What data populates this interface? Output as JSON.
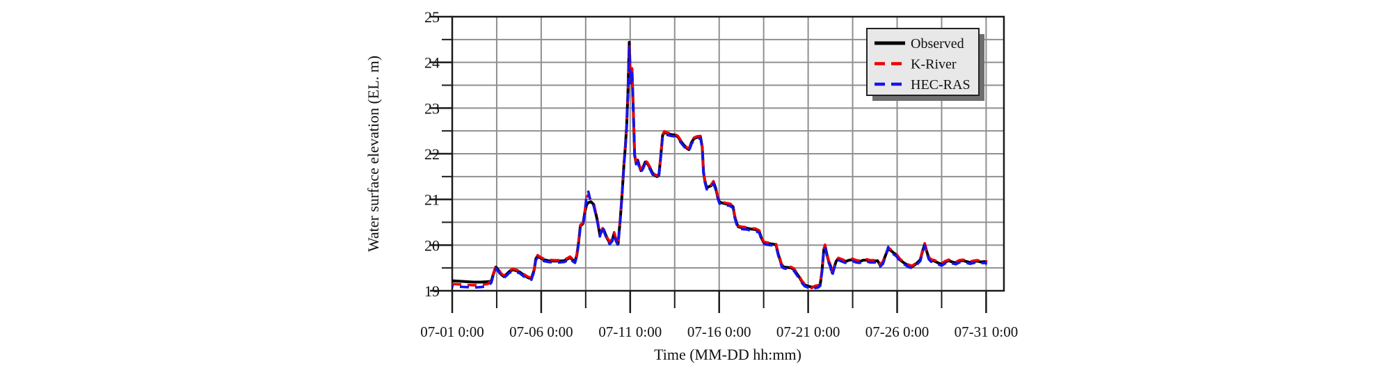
{
  "chart_data": {
    "type": "line",
    "title": "",
    "xlabel": "Time (MM-DD hh:mm)",
    "ylabel": "Water surface elevation (EL. m)",
    "x_unit": "day of July, hours as fraction",
    "xlim_days": [
      1,
      32
    ],
    "ylim": [
      19,
      25
    ],
    "grid_on": true,
    "x_major_ticks": [
      {
        "day": 1,
        "label": "07-01 0:00"
      },
      {
        "day": 6,
        "label": "07-06 0:00"
      },
      {
        "day": 11,
        "label": "07-11 0:00"
      },
      {
        "day": 16,
        "label": "07-16 0:00"
      },
      {
        "day": 21,
        "label": "07-21 0:00"
      },
      {
        "day": 26,
        "label": "07-26 0:00"
      },
      {
        "day": 31,
        "label": "07-31 0:00"
      }
    ],
    "x_minor_tick_days": [
      3.5,
      8.5,
      13.5,
      18.5,
      23.5,
      28.5
    ],
    "y_major_ticks": [
      {
        "value": 25,
        "label": "25"
      },
      {
        "value": 24,
        "label": "24"
      },
      {
        "value": 23,
        "label": "23"
      },
      {
        "value": 22,
        "label": "22"
      },
      {
        "value": 21,
        "label": "21"
      },
      {
        "value": 20,
        "label": "20"
      },
      {
        "value": 19,
        "label": "19"
      }
    ],
    "y_minor_tick_values": [
      19.5,
      20.5,
      21.5,
      22.5,
      23.5,
      24.5
    ],
    "grid": {
      "vertical_days": [
        3.5,
        6,
        8.5,
        11,
        13.5,
        16,
        18.5,
        21,
        23.5,
        26,
        28.5,
        31
      ],
      "horizontal_values": [
        19.5,
        20,
        20.5,
        21,
        21.5,
        22,
        22.5,
        23,
        23.5,
        24,
        24.5
      ]
    },
    "colors": {
      "frame": "#1a1a1a",
      "gridline": "#8f8f8f",
      "observed": "#000000",
      "k_river": "#f00000",
      "hec_ras": "#1414f0"
    },
    "legend": {
      "position": "top-right",
      "bg": "#e8e8e8",
      "border": "#222222",
      "shadow": "#6e6e6e"
    },
    "series": [
      {
        "name": "Observed",
        "color": "#000000",
        "line_style": "solid",
        "points": [
          [
            1.0,
            19.22
          ],
          [
            1.4,
            19.21
          ],
          [
            1.8,
            19.2
          ],
          [
            2.2,
            19.19
          ],
          [
            2.6,
            19.19
          ],
          [
            3.0,
            19.2
          ],
          [
            3.2,
            19.21
          ],
          [
            3.3,
            19.35
          ],
          [
            3.45,
            19.52
          ],
          [
            3.6,
            19.45
          ],
          [
            3.75,
            19.36
          ],
          [
            3.9,
            19.31
          ],
          [
            4.05,
            19.36
          ],
          [
            4.2,
            19.42
          ],
          [
            4.4,
            19.46
          ],
          [
            4.6,
            19.44
          ],
          [
            4.8,
            19.41
          ],
          [
            5.0,
            19.35
          ],
          [
            5.15,
            19.31
          ],
          [
            5.3,
            19.28
          ],
          [
            5.45,
            19.27
          ],
          [
            5.6,
            19.45
          ],
          [
            5.7,
            19.7
          ],
          [
            5.8,
            19.76
          ],
          [
            5.95,
            19.72
          ],
          [
            6.15,
            19.68
          ],
          [
            6.4,
            19.66
          ],
          [
            6.7,
            19.65
          ],
          [
            7.0,
            19.65
          ],
          [
            7.3,
            19.66
          ],
          [
            7.5,
            19.7
          ],
          [
            7.62,
            19.73
          ],
          [
            7.75,
            19.68
          ],
          [
            7.9,
            19.64
          ],
          [
            8.0,
            19.78
          ],
          [
            8.1,
            20.05
          ],
          [
            8.2,
            20.42
          ],
          [
            8.35,
            20.47
          ],
          [
            8.45,
            20.72
          ],
          [
            8.55,
            20.88
          ],
          [
            8.65,
            20.93
          ],
          [
            8.8,
            20.95
          ],
          [
            8.95,
            20.89
          ],
          [
            9.05,
            20.72
          ],
          [
            9.15,
            20.55
          ],
          [
            9.3,
            20.22
          ],
          [
            9.45,
            20.35
          ],
          [
            9.55,
            20.3
          ],
          [
            9.7,
            20.15
          ],
          [
            9.85,
            20.05
          ],
          [
            10.0,
            20.12
          ],
          [
            10.1,
            20.26
          ],
          [
            10.2,
            20.12
          ],
          [
            10.32,
            20.02
          ],
          [
            10.45,
            20.6
          ],
          [
            10.55,
            21.15
          ],
          [
            10.65,
            21.78
          ],
          [
            10.72,
            22.1
          ],
          [
            10.8,
            22.6
          ],
          [
            10.88,
            23.4
          ],
          [
            10.95,
            24.44
          ],
          [
            11.0,
            23.8
          ],
          [
            11.04,
            23.55
          ],
          [
            11.1,
            23.85
          ],
          [
            11.18,
            22.9
          ],
          [
            11.25,
            21.98
          ],
          [
            11.33,
            21.8
          ],
          [
            11.42,
            21.86
          ],
          [
            11.5,
            21.75
          ],
          [
            11.6,
            21.63
          ],
          [
            11.72,
            21.7
          ],
          [
            11.85,
            21.82
          ],
          [
            11.95,
            21.8
          ],
          [
            12.1,
            21.7
          ],
          [
            12.25,
            21.58
          ],
          [
            12.4,
            21.52
          ],
          [
            12.52,
            21.5
          ],
          [
            12.62,
            21.55
          ],
          [
            12.72,
            21.95
          ],
          [
            12.82,
            22.4
          ],
          [
            12.92,
            22.47
          ],
          [
            13.1,
            22.44
          ],
          [
            13.3,
            22.42
          ],
          [
            13.5,
            22.41
          ],
          [
            13.68,
            22.37
          ],
          [
            13.85,
            22.27
          ],
          [
            14.0,
            22.2
          ],
          [
            14.15,
            22.13
          ],
          [
            14.3,
            22.09
          ],
          [
            14.45,
            22.25
          ],
          [
            14.58,
            22.33
          ],
          [
            14.75,
            22.36
          ],
          [
            14.95,
            22.37
          ],
          [
            15.05,
            22.15
          ],
          [
            15.12,
            21.6
          ],
          [
            15.2,
            21.4
          ],
          [
            15.3,
            21.25
          ],
          [
            15.42,
            21.28
          ],
          [
            15.55,
            21.3
          ],
          [
            15.68,
            21.38
          ],
          [
            15.8,
            21.25
          ],
          [
            15.92,
            21.05
          ],
          [
            16.02,
            20.94
          ],
          [
            16.2,
            20.92
          ],
          [
            16.4,
            20.9
          ],
          [
            16.6,
            20.89
          ],
          [
            16.78,
            20.84
          ],
          [
            16.88,
            20.62
          ],
          [
            16.98,
            20.48
          ],
          [
            17.08,
            20.4
          ],
          [
            17.3,
            20.38
          ],
          [
            17.55,
            20.37
          ],
          [
            17.8,
            20.35
          ],
          [
            18.05,
            20.34
          ],
          [
            18.25,
            20.3
          ],
          [
            18.38,
            20.15
          ],
          [
            18.5,
            20.06
          ],
          [
            18.65,
            20.04
          ],
          [
            18.85,
            20.03
          ],
          [
            19.05,
            20.02
          ],
          [
            19.2,
            20.0
          ],
          [
            19.32,
            19.8
          ],
          [
            19.42,
            19.68
          ],
          [
            19.52,
            19.55
          ],
          [
            19.65,
            19.52
          ],
          [
            19.85,
            19.51
          ],
          [
            20.05,
            19.5
          ],
          [
            20.2,
            19.47
          ],
          [
            20.35,
            19.38
          ],
          [
            20.5,
            19.3
          ],
          [
            20.65,
            19.2
          ],
          [
            20.8,
            19.13
          ],
          [
            21.0,
            19.1
          ],
          [
            21.2,
            19.08
          ],
          [
            21.4,
            19.09
          ],
          [
            21.55,
            19.1
          ],
          [
            21.68,
            19.14
          ],
          [
            21.78,
            19.45
          ],
          [
            21.88,
            19.9
          ],
          [
            21.95,
            19.99
          ],
          [
            22.05,
            19.8
          ],
          [
            22.15,
            19.65
          ],
          [
            22.25,
            19.55
          ],
          [
            22.35,
            19.4
          ],
          [
            22.45,
            19.5
          ],
          [
            22.58,
            19.65
          ],
          [
            22.7,
            19.7
          ],
          [
            22.9,
            19.67
          ],
          [
            23.1,
            19.64
          ],
          [
            23.3,
            19.67
          ],
          [
            23.5,
            19.68
          ],
          [
            23.7,
            19.65
          ],
          [
            23.9,
            19.64
          ],
          [
            24.1,
            19.67
          ],
          [
            24.3,
            19.67
          ],
          [
            24.5,
            19.65
          ],
          [
            24.7,
            19.65
          ],
          [
            24.9,
            19.66
          ],
          [
            25.05,
            19.56
          ],
          [
            25.2,
            19.62
          ],
          [
            25.35,
            19.78
          ],
          [
            25.5,
            19.92
          ],
          [
            25.65,
            19.88
          ],
          [
            25.8,
            19.83
          ],
          [
            25.95,
            19.79
          ],
          [
            26.15,
            19.68
          ],
          [
            26.35,
            19.62
          ],
          [
            26.55,
            19.57
          ],
          [
            26.7,
            19.54
          ],
          [
            26.85,
            19.53
          ],
          [
            27.0,
            19.57
          ],
          [
            27.15,
            19.62
          ],
          [
            27.3,
            19.68
          ],
          [
            27.45,
            19.9
          ],
          [
            27.55,
            20.02
          ],
          [
            27.65,
            19.88
          ],
          [
            27.78,
            19.72
          ],
          [
            27.9,
            19.67
          ],
          [
            28.1,
            19.65
          ],
          [
            28.3,
            19.61
          ],
          [
            28.5,
            19.58
          ],
          [
            28.7,
            19.63
          ],
          [
            28.9,
            19.66
          ],
          [
            29.1,
            19.63
          ],
          [
            29.3,
            19.61
          ],
          [
            29.5,
            19.65
          ],
          [
            29.7,
            19.66
          ],
          [
            29.9,
            19.64
          ],
          [
            30.1,
            19.62
          ],
          [
            30.3,
            19.64
          ],
          [
            30.5,
            19.65
          ],
          [
            30.7,
            19.63
          ],
          [
            30.9,
            19.64
          ],
          [
            31.05,
            19.62
          ]
        ]
      },
      {
        "name": "K-River",
        "color": "#f00000",
        "line_style": "dashed",
        "base": "Observed",
        "offset": 0.02,
        "override_points": [
          [
            1.0,
            19.15
          ],
          [
            1.4,
            19.14
          ],
          [
            1.8,
            19.13
          ],
          [
            2.2,
            19.12
          ],
          [
            2.6,
            19.13
          ],
          [
            3.0,
            19.15
          ],
          [
            8.55,
            21.05
          ],
          [
            8.65,
            21.1
          ],
          [
            10.95,
            24.4
          ],
          [
            15.3,
            21.32
          ],
          [
            21.2,
            19.06
          ]
        ]
      },
      {
        "name": "HEC-RAS",
        "color": "#1414f0",
        "line_style": "dashed",
        "base": "Observed",
        "offset": -0.03,
        "override_points": [
          [
            1.0,
            19.1
          ],
          [
            1.4,
            19.09
          ],
          [
            1.8,
            19.08
          ],
          [
            2.2,
            19.07
          ],
          [
            2.6,
            19.08
          ],
          [
            3.0,
            19.1
          ],
          [
            8.55,
            21.1
          ],
          [
            8.65,
            21.17
          ],
          [
            9.45,
            20.42
          ],
          [
            10.95,
            24.33
          ],
          [
            21.2,
            19.03
          ],
          [
            22.35,
            19.33
          ],
          [
            25.5,
            19.96
          ]
        ]
      }
    ]
  }
}
